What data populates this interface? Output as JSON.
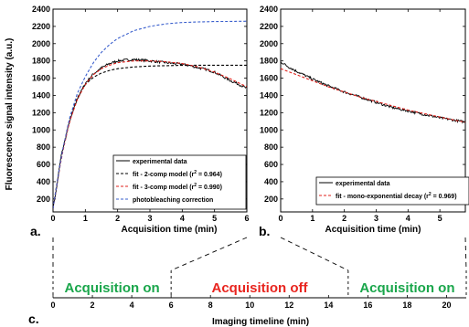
{
  "chart_data": [
    {
      "type": "line",
      "panel_label": "a.",
      "xlabel": "Acquisition time (min)",
      "ylabel": "Fluorescence signal intensity (a.u.)",
      "xlim": [
        0,
        6
      ],
      "ylim": [
        50,
        2400
      ],
      "x_ticks": [
        "0",
        "1",
        "2",
        "3",
        "4",
        "5",
        "6"
      ],
      "y_ticks": [
        "200",
        "400",
        "600",
        "800",
        "1000",
        "1200",
        "1400",
        "1600",
        "1800",
        "2000",
        "2200",
        "2400"
      ],
      "legend_position": "bottom-right",
      "series": [
        {
          "name": "experimental data",
          "color": "#000000",
          "style": "solid",
          "x": [
            0,
            0.1,
            0.25,
            0.5,
            0.75,
            1.0,
            1.25,
            1.5,
            1.75,
            2.0,
            2.25,
            2.5,
            2.75,
            3.0,
            3.25,
            3.5,
            3.75,
            4.0,
            4.25,
            4.5,
            4.75,
            5.0,
            5.25,
            5.5,
            5.75,
            6.0
          ],
          "y": [
            90,
            300,
            700,
            1080,
            1360,
            1540,
            1650,
            1720,
            1770,
            1800,
            1810,
            1815,
            1810,
            1800,
            1790,
            1780,
            1770,
            1760,
            1745,
            1720,
            1700,
            1670,
            1620,
            1570,
            1530,
            1480
          ]
        },
        {
          "name": "fit - 2-comp model",
          "r2": "0.964",
          "color": "#000000",
          "style": "dashed",
          "x": [
            0,
            0.1,
            0.25,
            0.5,
            0.75,
            1.0,
            1.25,
            1.5,
            1.75,
            2.0,
            2.5,
            3.0,
            3.5,
            4.0,
            4.5,
            5.0,
            5.5,
            6.0
          ],
          "y": [
            90,
            330,
            680,
            1110,
            1370,
            1530,
            1610,
            1660,
            1690,
            1710,
            1730,
            1740,
            1745,
            1748,
            1750,
            1750,
            1750,
            1750
          ]
        },
        {
          "name": "fit - 3-comp model",
          "r2": "0.990",
          "color": "#e0201b",
          "style": "dashed",
          "x": [
            0,
            0.1,
            0.25,
            0.5,
            0.75,
            1.0,
            1.25,
            1.5,
            1.75,
            2.0,
            2.5,
            3.0,
            3.5,
            4.0,
            4.5,
            5.0,
            5.5,
            6.0
          ],
          "y": [
            90,
            310,
            660,
            1080,
            1350,
            1530,
            1640,
            1710,
            1750,
            1780,
            1800,
            1800,
            1790,
            1770,
            1730,
            1670,
            1590,
            1500
          ]
        },
        {
          "name": "photobleaching correction",
          "color": "#3a5fcd",
          "style": "dashed",
          "x": [
            0,
            0.1,
            0.25,
            0.5,
            0.75,
            1.0,
            1.25,
            1.5,
            1.75,
            2.0,
            2.5,
            3.0,
            3.5,
            4.0,
            4.5,
            5.0,
            5.5,
            6.0
          ],
          "y": [
            90,
            320,
            680,
            1120,
            1420,
            1620,
            1780,
            1900,
            1990,
            2060,
            2150,
            2200,
            2230,
            2245,
            2252,
            2256,
            2258,
            2260
          ]
        }
      ]
    },
    {
      "type": "line",
      "panel_label": "b.",
      "xlabel": "Acquisition time (min)",
      "xlim": [
        0,
        5.8
      ],
      "ylim": [
        50,
        2400
      ],
      "x_ticks": [
        "0",
        "1",
        "2",
        "3",
        "4",
        "5"
      ],
      "y_ticks": [
        "200",
        "400",
        "600",
        "800",
        "1000",
        "1200",
        "1400",
        "1600",
        "1800",
        "2000",
        "2200",
        "2400"
      ],
      "legend_position": "bottom-right",
      "series": [
        {
          "name": "experimental data",
          "color": "#000000",
          "style": "solid",
          "x": [
            0,
            0.25,
            0.5,
            1.0,
            1.5,
            2.0,
            2.5,
            3.0,
            3.5,
            4.0,
            4.5,
            5.0,
            5.5,
            5.8
          ],
          "y": [
            1790,
            1730,
            1680,
            1590,
            1510,
            1440,
            1380,
            1320,
            1260,
            1220,
            1180,
            1140,
            1110,
            1090
          ]
        },
        {
          "name": "fit - mono-exponential decay",
          "r2": "0.969",
          "color": "#e0201b",
          "style": "dashed",
          "x": [
            0,
            0.5,
            1.0,
            1.5,
            2.0,
            2.5,
            3.0,
            3.5,
            4.0,
            4.5,
            5.0,
            5.5,
            5.8
          ],
          "y": [
            1710,
            1640,
            1570,
            1500,
            1440,
            1380,
            1330,
            1280,
            1230,
            1190,
            1150,
            1110,
            1090
          ]
        }
      ]
    },
    {
      "type": "timeline",
      "panel_label": "c.",
      "xlabel": "Imaging timeline (min)",
      "xlim": [
        0,
        21
      ],
      "x_ticks": [
        "0",
        "2",
        "4",
        "6",
        "8",
        "10",
        "12",
        "14",
        "16",
        "18",
        "20"
      ],
      "segments": [
        {
          "label": "Acquisition on",
          "start": 0,
          "end": 6,
          "color": "#1aa64b"
        },
        {
          "label": "Acquisition off",
          "start": 6,
          "end": 15,
          "color": "#e8251f"
        },
        {
          "label": "Acquisition on",
          "start": 15,
          "end": 21,
          "color": "#1aa64b"
        }
      ]
    }
  ]
}
